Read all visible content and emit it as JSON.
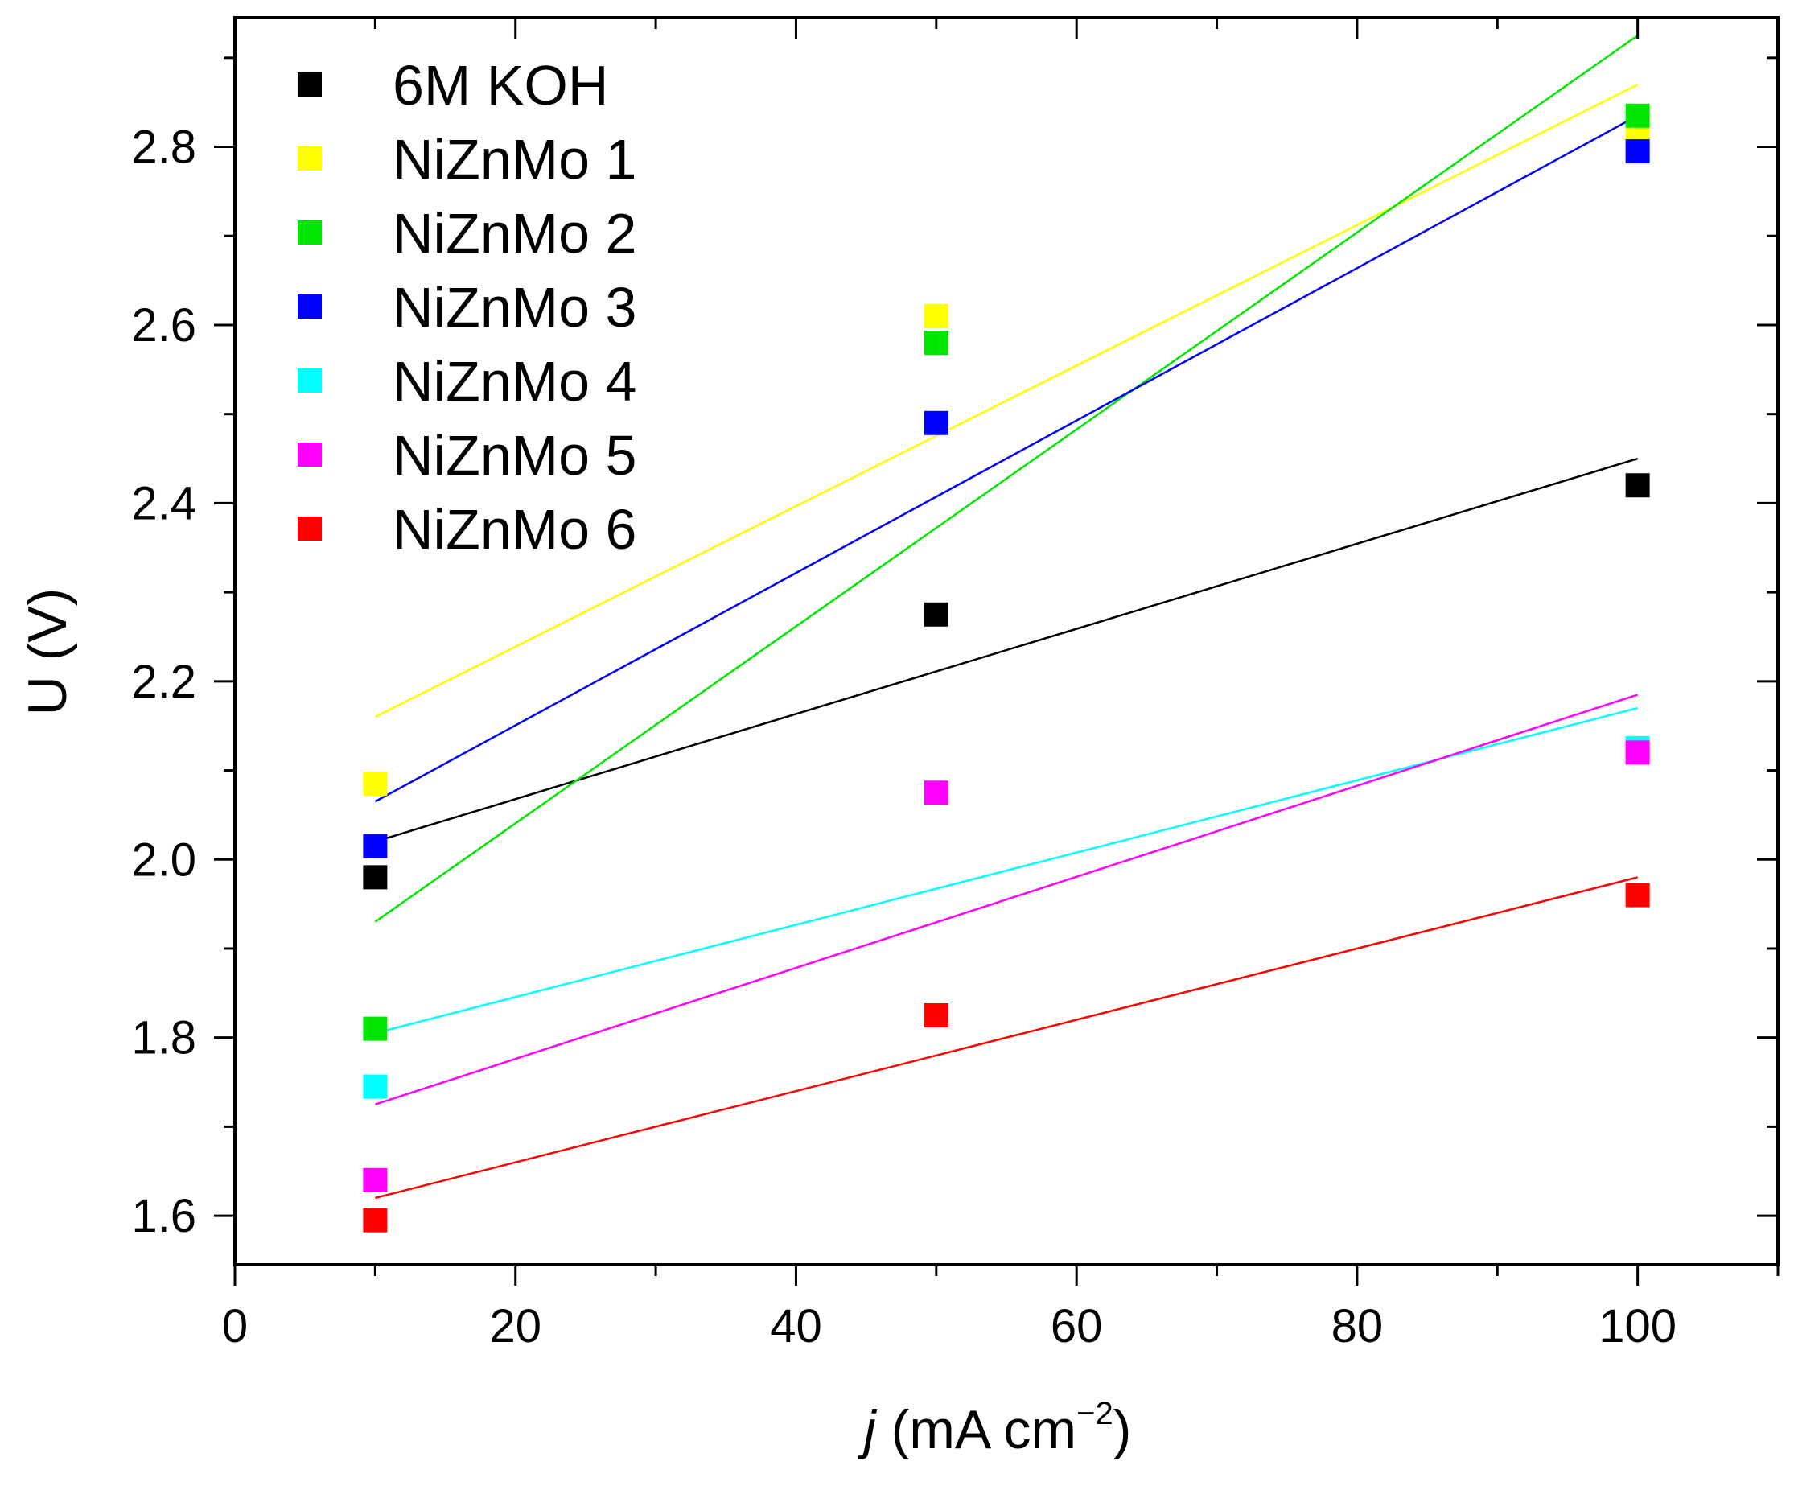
{
  "chart_data": {
    "type": "scatter",
    "xlabel": {
      "italic": "j",
      "rest": " (mA cm",
      "sup": "−2",
      "close": ")"
    },
    "ylabel": "U (V)",
    "xlim": [
      0,
      110
    ],
    "ylim": [
      1.545,
      2.945
    ],
    "x_ticks": [
      0,
      20,
      40,
      60,
      80,
      100
    ],
    "x_minor_ticks": [
      10,
      30,
      50,
      70,
      90,
      110
    ],
    "y_ticks": [
      1.6,
      1.8,
      2.0,
      2.2,
      2.4,
      2.6,
      2.8
    ],
    "y_tick_labels": [
      "1.6",
      "1.8",
      "2.0",
      "2.2",
      "2.4",
      "2.6",
      "2.8"
    ],
    "y_minor_ticks": [
      1.7,
      1.9,
      2.1,
      2.3,
      2.5,
      2.7,
      2.9
    ],
    "x_tick_labels": [
      "0",
      "20",
      "40",
      "60",
      "80",
      "100"
    ],
    "grid": false,
    "legend_position": "top-left",
    "marker": "square",
    "x": [
      10,
      50,
      100
    ],
    "series": [
      {
        "name": "6M KOH",
        "color": "#000000",
        "values": [
          1.98,
          2.275,
          2.42
        ],
        "fit": [
          2.02,
          2.45
        ]
      },
      {
        "name": "NiZnMo 1",
        "color": "#ffff00",
        "values": [
          2.085,
          2.61,
          2.82
        ],
        "fit": [
          2.16,
          2.87
        ]
      },
      {
        "name": "NiZnMo 2",
        "color": "#00e600",
        "values": [
          1.81,
          2.58,
          2.835
        ],
        "fit": [
          1.93,
          2.925
        ]
      },
      {
        "name": "NiZnMo 3",
        "color": "#0000ff",
        "values": [
          2.015,
          2.49,
          2.795
        ],
        "fit": [
          2.065,
          2.835
        ]
      },
      {
        "name": "NiZnMo 4",
        "color": "#00ffff",
        "values": [
          1.745,
          null,
          2.125
        ],
        "fit": [
          1.805,
          2.17
        ]
      },
      {
        "name": "NiZnMo 5",
        "color": "#ff00ff",
        "values": [
          1.64,
          2.075,
          2.12
        ],
        "fit": [
          1.725,
          2.185
        ]
      },
      {
        "name": "NiZnMo 6",
        "color": "#ff0000",
        "values": [
          1.595,
          1.825,
          1.96
        ],
        "fit": [
          1.62,
          1.98
        ]
      }
    ]
  }
}
